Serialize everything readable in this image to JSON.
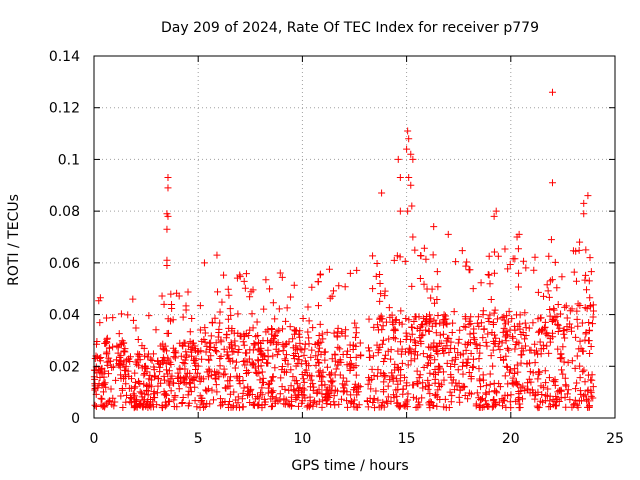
{
  "chart_data": {
    "type": "scatter",
    "title": "Day 209 of 2024, Rate Of TEC Index for receiver p779",
    "xlabel": "GPS time / hours",
    "ylabel": "ROTI / TECUs",
    "xlim": [
      0,
      25
    ],
    "ylim": [
      0,
      0.14
    ],
    "xticks": [
      0,
      5,
      10,
      15,
      20,
      25
    ],
    "yticks": [
      0,
      0.02,
      0.04,
      0.06,
      0.08,
      0.1,
      0.12,
      0.14
    ],
    "xtick_labels": [
      "0",
      "5",
      "10",
      "15",
      "20",
      "25"
    ],
    "ytick_labels": [
      "0",
      "0.02",
      "0.04",
      "0.06",
      "0.08",
      "0.1",
      "0.12",
      "0.14"
    ],
    "grid": true,
    "marker": "+",
    "color": "#ff0000",
    "series": [
      {
        "name": "ROTI",
        "notable_points": [
          {
            "x": 3.55,
            "y": 0.093
          },
          {
            "x": 3.55,
            "y": 0.089
          },
          {
            "x": 3.5,
            "y": 0.079
          },
          {
            "x": 3.55,
            "y": 0.078
          },
          {
            "x": 3.5,
            "y": 0.073
          },
          {
            "x": 3.5,
            "y": 0.061
          },
          {
            "x": 3.5,
            "y": 0.059
          },
          {
            "x": 5.3,
            "y": 0.06
          },
          {
            "x": 5.9,
            "y": 0.063
          },
          {
            "x": 13.8,
            "y": 0.087
          },
          {
            "x": 14.6,
            "y": 0.1
          },
          {
            "x": 14.7,
            "y": 0.093
          },
          {
            "x": 14.7,
            "y": 0.08
          },
          {
            "x": 15.05,
            "y": 0.111
          },
          {
            "x": 15.1,
            "y": 0.108
          },
          {
            "x": 15.0,
            "y": 0.104
          },
          {
            "x": 15.2,
            "y": 0.102
          },
          {
            "x": 15.3,
            "y": 0.1
          },
          {
            "x": 15.1,
            "y": 0.093
          },
          {
            "x": 15.2,
            "y": 0.09
          },
          {
            "x": 15.25,
            "y": 0.082
          },
          {
            "x": 15.05,
            "y": 0.08
          },
          {
            "x": 15.3,
            "y": 0.07
          },
          {
            "x": 16.3,
            "y": 0.074
          },
          {
            "x": 17.0,
            "y": 0.071
          },
          {
            "x": 19.3,
            "y": 0.08
          },
          {
            "x": 19.2,
            "y": 0.078
          },
          {
            "x": 20.4,
            "y": 0.071
          },
          {
            "x": 20.3,
            "y": 0.07
          },
          {
            "x": 22.0,
            "y": 0.126
          },
          {
            "x": 22.0,
            "y": 0.091
          },
          {
            "x": 21.95,
            "y": 0.069
          },
          {
            "x": 23.5,
            "y": 0.083
          },
          {
            "x": 23.7,
            "y": 0.086
          },
          {
            "x": 23.5,
            "y": 0.079
          },
          {
            "x": 23.3,
            "y": 0.068
          },
          {
            "x": 23.6,
            "y": 0.065
          },
          {
            "x": 23.8,
            "y": 0.062
          }
        ],
        "bulk_profile": [
          {
            "x_start": 0.0,
            "x_end": 1.5,
            "y_min": 0.004,
            "y_typical_max": 0.03,
            "y_peak": 0.047
          },
          {
            "x_start": 1.5,
            "x_end": 3.2,
            "y_min": 0.004,
            "y_typical_max": 0.025,
            "y_peak": 0.046
          },
          {
            "x_start": 3.2,
            "x_end": 5.5,
            "y_min": 0.004,
            "y_typical_max": 0.03,
            "y_peak": 0.049
          },
          {
            "x_start": 5.5,
            "x_end": 8.0,
            "y_min": 0.004,
            "y_typical_max": 0.035,
            "y_peak": 0.056
          },
          {
            "x_start": 8.0,
            "x_end": 12.8,
            "y_min": 0.004,
            "y_typical_max": 0.035,
            "y_peak": 0.058
          },
          {
            "x_start": 13.1,
            "x_end": 16.0,
            "y_min": 0.004,
            "y_typical_max": 0.04,
            "y_peak": 0.066
          },
          {
            "x_start": 16.0,
            "x_end": 19.0,
            "y_min": 0.004,
            "y_typical_max": 0.04,
            "y_peak": 0.068
          },
          {
            "x_start": 19.0,
            "x_end": 21.5,
            "y_min": 0.004,
            "y_typical_max": 0.04,
            "y_peak": 0.066
          },
          {
            "x_start": 21.5,
            "x_end": 24.0,
            "y_min": 0.004,
            "y_typical_max": 0.045,
            "y_peak": 0.065
          }
        ],
        "gaps": [
          {
            "x_start": 12.8,
            "x_end": 13.1
          }
        ]
      }
    ]
  }
}
